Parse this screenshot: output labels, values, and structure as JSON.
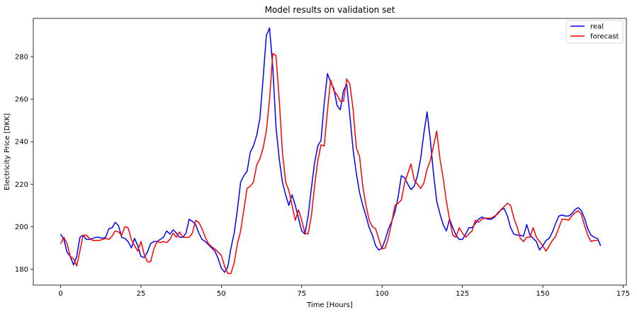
{
  "chart_data": {
    "type": "line",
    "title": "Model results on validation set",
    "xlabel": "Time [Hours]",
    "ylabel": "Electricity Price [DKK]",
    "xlim": [
      -8.5,
      176
    ],
    "ylim": [
      172.5,
      298
    ],
    "xticks": [
      0,
      25,
      50,
      75,
      100,
      125,
      150,
      175
    ],
    "yticks": [
      180,
      200,
      220,
      240,
      260,
      280
    ],
    "grid": false,
    "legend_position": "top-right",
    "colors": {
      "real": "#0000ff",
      "forecast": "#ff0000"
    },
    "series": [
      {
        "name": "real",
        "x_start": 0,
        "values": [
          196.5,
          194,
          188,
          186,
          182,
          186,
          195,
          196,
          194,
          194,
          194.5,
          195,
          195,
          194.5,
          195,
          199,
          199.5,
          202,
          200.5,
          195,
          194.5,
          193,
          190,
          194.5,
          191,
          186,
          185.5,
          188,
          192,
          193,
          193,
          194,
          195,
          198,
          196.5,
          198.5,
          197,
          195,
          195,
          197,
          203.5,
          202.5,
          201,
          197,
          194,
          193,
          191.5,
          190,
          188.5,
          185,
          180.5,
          178.5,
          181,
          190,
          197,
          208,
          221,
          224,
          226,
          235,
          238,
          243,
          251,
          270,
          290,
          293.5,
          275,
          247,
          232,
          221,
          215,
          210,
          215,
          210,
          204,
          198,
          196.5,
          205,
          218,
          230,
          238,
          240.5,
          258,
          272,
          268,
          265,
          257,
          255,
          264,
          267,
          252,
          236,
          225,
          216,
          210,
          205,
          199.5,
          196,
          191,
          189,
          190,
          194,
          199,
          202.5,
          207,
          214,
          224,
          223,
          220,
          217.5,
          219,
          224,
          232,
          244,
          254,
          241,
          225,
          212,
          206,
          201,
          198,
          203.5,
          199.5,
          196,
          194,
          194,
          196.5,
          199.5,
          199.5,
          201.5,
          203.5,
          204.5,
          204,
          203.5,
          203.5,
          204.5,
          206.5,
          208,
          208.5,
          205,
          199.5,
          196.5,
          196,
          196,
          195.5,
          201,
          196,
          194.5,
          193,
          189,
          191,
          193.5,
          194.5,
          197.5,
          201.5,
          205,
          205.5,
          205,
          205,
          206,
          208,
          209,
          207.5,
          204,
          199,
          196,
          195,
          194.5,
          191
        ]
      },
      {
        "name": "forecast",
        "x_start": 0,
        "values": [
          192,
          195,
          192,
          186,
          185,
          181.5,
          188.5,
          196,
          196,
          194.5,
          193.5,
          193.5,
          193.5,
          194,
          194.5,
          194,
          195.5,
          198,
          197.5,
          196,
          200,
          199.5,
          194,
          191,
          188.5,
          193,
          187,
          183.5,
          183.5,
          189.5,
          193,
          192.5,
          193,
          192.5,
          194,
          197,
          195,
          197.5,
          195,
          195,
          195,
          197,
          203,
          202,
          199,
          195,
          192,
          190.5,
          189.5,
          188,
          186.5,
          181.5,
          178,
          178,
          183,
          192,
          198,
          208,
          218,
          219,
          221,
          229,
          232,
          237,
          245,
          260,
          281.5,
          280.5,
          260,
          235,
          221,
          217,
          210,
          203,
          208,
          203,
          197,
          196.5,
          205,
          219,
          231,
          238.5,
          238,
          254.5,
          269,
          264,
          262,
          259,
          259,
          269.5,
          267,
          255,
          237,
          233,
          219,
          210,
          203,
          200,
          199,
          194,
          189.5,
          190,
          195,
          202,
          210,
          211,
          212.5,
          220.5,
          225,
          229.5,
          222,
          220,
          218,
          220.5,
          227,
          231,
          238,
          245,
          232,
          223,
          212,
          203.5,
          196,
          195,
          199.5,
          197,
          195,
          196.5,
          198,
          203,
          202,
          203.5,
          204,
          204,
          204,
          205,
          206,
          208,
          209.5,
          211,
          210,
          204,
          200,
          194.5,
          193,
          195,
          195,
          199.5,
          195,
          193,
          191,
          188.5,
          191,
          193.5,
          195.5,
          199.5,
          203.5,
          203.5,
          203,
          205,
          206.5,
          207.5,
          206,
          200.5,
          196,
          193,
          193.5,
          193.5
        ]
      }
    ]
  }
}
